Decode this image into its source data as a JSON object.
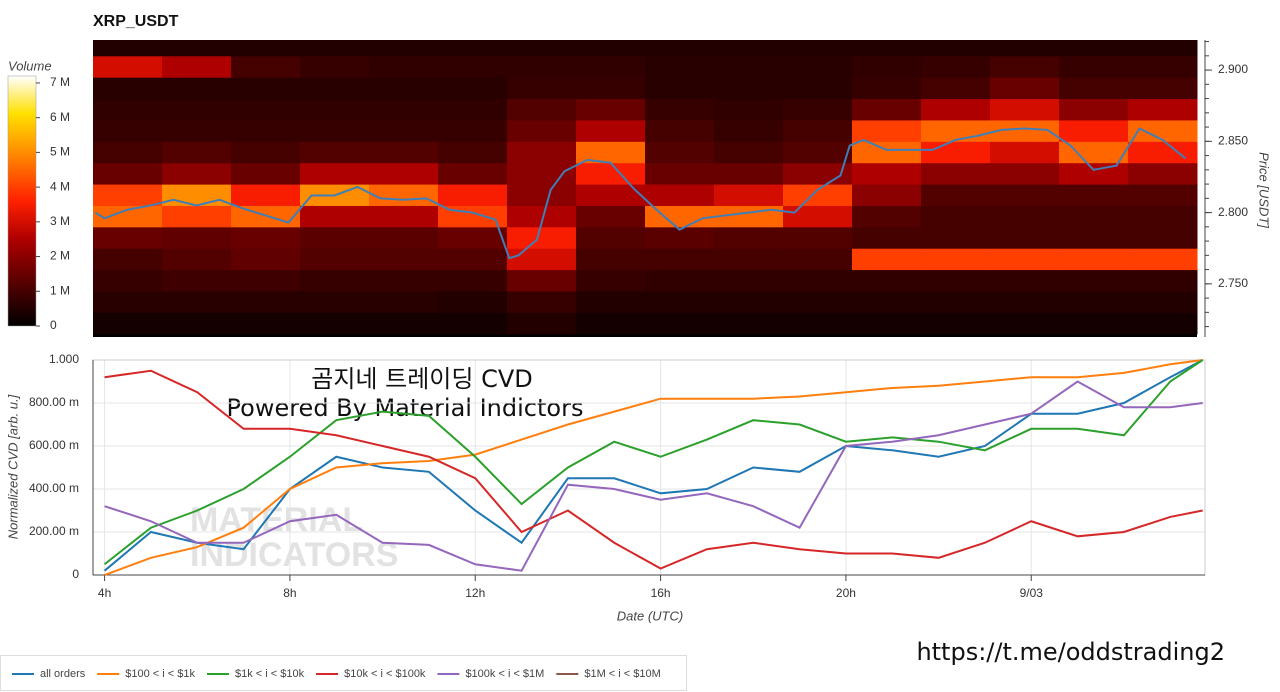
{
  "chart_data": [
    {
      "type": "heatmap",
      "title": "XRP_USDT",
      "y_label": "Price [USDT]",
      "colorbar_label": "Volume",
      "xlim": [
        3.75,
        27.75
      ],
      "x_edges": [
        3.75,
        5.25,
        6.75,
        8.25,
        9.75,
        11.25,
        12.75,
        14.25,
        15.75,
        17.25,
        18.75,
        20.25,
        21.75,
        23.25,
        24.75,
        26.25,
        27.75
      ],
      "y_edges": [
        2.715,
        2.73,
        2.745,
        2.76,
        2.775,
        2.79,
        2.805,
        2.82,
        2.835,
        2.85,
        2.865,
        2.88,
        2.895,
        2.91,
        2.925
      ],
      "z": [
        [
          0.3,
          0.3,
          0.3,
          0.3,
          0.3,
          0.3,
          0.5,
          0.3,
          0.3,
          0.3,
          0.3,
          0.3,
          0.3,
          0.3,
          0.3,
          0.3
        ],
        [
          0.6,
          0.6,
          0.6,
          0.6,
          0.6,
          0.5,
          0.8,
          0.5,
          0.5,
          0.5,
          0.5,
          0.5,
          0.5,
          0.5,
          0.5,
          0.5
        ],
        [
          0.8,
          0.9,
          0.9,
          0.8,
          0.8,
          0.8,
          1.5,
          0.8,
          0.7,
          0.7,
          0.7,
          0.7,
          0.7,
          0.7,
          0.7,
          0.7
        ],
        [
          1.0,
          1.2,
          1.4,
          1.2,
          1.2,
          1.2,
          3.0,
          1.0,
          1.0,
          1.0,
          1.0,
          4.0,
          4.0,
          4.0,
          4.0,
          4.0
        ],
        [
          1.5,
          1.4,
          1.5,
          1.3,
          1.3,
          1.5,
          3.5,
          1.2,
          1.3,
          1.2,
          1.2,
          1.0,
          1.0,
          1.0,
          1.0,
          1.0
        ],
        [
          4.5,
          4.0,
          4.5,
          2.5,
          2.5,
          4.0,
          2.5,
          1.5,
          4.5,
          4.5,
          3.0,
          1.2,
          1.0,
          1.0,
          1.0,
          1.0
        ],
        [
          4.0,
          5.0,
          3.5,
          5.0,
          4.5,
          3.5,
          2.0,
          2.5,
          2.5,
          3.0,
          4.0,
          2.0,
          1.2,
          1.2,
          1.2,
          1.2
        ],
        [
          1.5,
          2.0,
          1.5,
          2.5,
          2.5,
          1.5,
          2.0,
          3.5,
          1.5,
          1.5,
          2.0,
          2.5,
          2.0,
          2.0,
          2.5,
          2.0
        ],
        [
          1.0,
          1.2,
          1.0,
          1.2,
          1.2,
          1.0,
          2.0,
          4.5,
          1.2,
          1.0,
          1.2,
          4.5,
          3.5,
          3.0,
          4.5,
          3.5
        ],
        [
          0.8,
          0.8,
          0.8,
          0.8,
          0.8,
          0.8,
          1.5,
          2.5,
          1.0,
          0.8,
          1.0,
          4.0,
          4.5,
          4.5,
          3.5,
          4.5
        ],
        [
          0.7,
          0.7,
          0.7,
          0.7,
          0.7,
          0.7,
          1.2,
          1.5,
          0.8,
          0.7,
          0.8,
          1.5,
          2.5,
          3.0,
          2.0,
          2.5
        ],
        [
          0.6,
          0.6,
          0.6,
          0.6,
          0.6,
          0.6,
          0.8,
          0.8,
          0.6,
          0.6,
          0.6,
          0.8,
          1.0,
          1.5,
          1.0,
          1.0
        ],
        [
          3.0,
          2.5,
          1.0,
          0.8,
          0.7,
          0.7,
          0.7,
          0.7,
          0.6,
          0.6,
          0.6,
          0.7,
          0.8,
          1.0,
          0.8,
          0.8
        ],
        [
          0.5,
          0.5,
          0.5,
          0.5,
          0.5,
          0.5,
          0.5,
          0.5,
          0.5,
          0.5,
          0.5,
          0.5,
          0.5,
          0.5,
          0.5,
          0.5
        ]
      ],
      "zlim": [
        0,
        7.2
      ],
      "zticks": [
        0,
        {
          "value": 1,
          "label": "1 M"
        },
        {
          "value": 2,
          "label": "2 M"
        },
        {
          "value": 3,
          "label": "3 M"
        },
        {
          "value": 4,
          "label": "4 M"
        },
        {
          "value": 5,
          "label": "5 M"
        },
        {
          "value": 6,
          "label": "6 M"
        },
        {
          "value": 7,
          "label": "7 M"
        }
      ],
      "ylim": [
        2.7127,
        2.9211
      ],
      "yticks": [
        {
          "value": 2.75,
          "label": "2.750"
        },
        {
          "value": 2.8,
          "label": "2.800"
        },
        {
          "value": 2.85,
          "label": "2.850"
        },
        {
          "value": 2.9,
          "label": "2.900"
        }
      ],
      "price": {
        "color": "#3f7fb8",
        "x": [
          3.8,
          4.0,
          4.5,
          5.0,
          5.5,
          6.0,
          6.5,
          7.0,
          7.5,
          8.0,
          8.5,
          9.0,
          9.5,
          10.0,
          10.5,
          11.0,
          11.5,
          12.0,
          12.5,
          12.8,
          13.0,
          13.4,
          13.7,
          14.0,
          14.5,
          15.0,
          15.5,
          16.0,
          16.5,
          17.0,
          17.5,
          18.0,
          18.5,
          19.0,
          19.5,
          20.0,
          20.2,
          20.5,
          21.0,
          21.5,
          22.0,
          22.5,
          23.0,
          23.5,
          24.0,
          24.5,
          25.0,
          25.5,
          26.0,
          26.5,
          27.0,
          27.5
        ],
        "values": [
          2.8,
          2.796,
          2.802,
          2.805,
          2.809,
          2.805,
          2.809,
          2.803,
          2.798,
          2.793,
          2.812,
          2.812,
          2.818,
          2.81,
          2.809,
          2.81,
          2.802,
          2.8,
          2.795,
          2.768,
          2.77,
          2.781,
          2.816,
          2.829,
          2.837,
          2.835,
          2.817,
          2.802,
          2.788,
          2.796,
          2.798,
          2.8,
          2.802,
          2.8,
          2.816,
          2.826,
          2.847,
          2.851,
          2.844,
          2.844,
          2.844,
          2.851,
          2.854,
          2.858,
          2.859,
          2.858,
          2.847,
          2.83,
          2.833,
          2.859,
          2.851,
          2.838
        ]
      }
    },
    {
      "type": "line",
      "x_label": "Date (UTC)",
      "y_label": "Normalized CVD [arb. u.]",
      "annotations": [
        "곰지네 트레이딩 CVD",
        "Powered By Material Indictors"
      ],
      "watermark": [
        "MATERIAL",
        "INDICATORS"
      ],
      "xlim": [
        3.75,
        27.75
      ],
      "xticks": [
        {
          "value": 4,
          "label": "4h"
        },
        {
          "value": 8,
          "label": "8h"
        },
        {
          "value": 12,
          "label": "12h"
        },
        {
          "value": 16,
          "label": "16h"
        },
        {
          "value": 20,
          "label": "20h"
        },
        {
          "value": 24,
          "label": "9/03"
        }
      ],
      "ylim": [
        0,
        1
      ],
      "yticks": [
        0,
        {
          "value": 0.2,
          "label": "200.00 m"
        },
        {
          "value": 0.4,
          "label": "400.00 m"
        },
        {
          "value": 0.6,
          "label": "600.00 m"
        },
        {
          "value": 0.8,
          "label": "800.00 m"
        },
        {
          "value": 1,
          "label": "1.000"
        }
      ],
      "grid": true,
      "x": [
        4,
        5,
        6,
        7,
        8,
        9,
        10,
        11,
        12,
        13,
        14,
        15,
        16,
        17,
        18,
        19,
        20,
        21,
        22,
        23,
        24,
        25,
        26,
        27,
        27.7
      ],
      "series": [
        {
          "name": "all orders",
          "color": "#1f77b4",
          "values": [
            0.02,
            0.2,
            0.15,
            0.12,
            0.4,
            0.55,
            0.5,
            0.48,
            0.3,
            0.15,
            0.45,
            0.45,
            0.38,
            0.4,
            0.5,
            0.48,
            0.6,
            0.58,
            0.55,
            0.6,
            0.75,
            0.75,
            0.8,
            0.92,
            1.0
          ]
        },
        {
          "name": "$100 < i < $1k",
          "color": "#ff7f0e",
          "values": [
            0.0,
            0.08,
            0.13,
            0.22,
            0.4,
            0.5,
            0.52,
            0.53,
            0.56,
            0.63,
            0.7,
            0.76,
            0.82,
            0.82,
            0.82,
            0.83,
            0.85,
            0.87,
            0.88,
            0.9,
            0.92,
            0.92,
            0.94,
            0.98,
            1.0
          ]
        },
        {
          "name": "$1k < i < $10k",
          "color": "#2ca02c",
          "values": [
            0.05,
            0.22,
            0.3,
            0.4,
            0.55,
            0.72,
            0.76,
            0.74,
            0.55,
            0.33,
            0.5,
            0.62,
            0.55,
            0.63,
            0.72,
            0.7,
            0.62,
            0.64,
            0.62,
            0.58,
            0.68,
            0.68,
            0.65,
            0.9,
            1.0
          ]
        },
        {
          "name": "$10k < i < $100k",
          "color": "#d62728",
          "values": [
            0.92,
            0.95,
            0.85,
            0.68,
            0.68,
            0.65,
            0.6,
            0.55,
            0.45,
            0.2,
            0.3,
            0.15,
            0.03,
            0.12,
            0.15,
            0.12,
            0.1,
            0.1,
            0.08,
            0.15,
            0.25,
            0.18,
            0.2,
            0.27,
            0.3
          ]
        },
        {
          "name": "$100k < i < $1M",
          "color": "#9467bd",
          "values": [
            0.32,
            0.25,
            0.15,
            0.15,
            0.25,
            0.28,
            0.15,
            0.14,
            0.05,
            0.02,
            0.42,
            0.4,
            0.35,
            0.38,
            0.32,
            0.22,
            0.6,
            0.62,
            0.65,
            0.7,
            0.75,
            0.9,
            0.78,
            0.78,
            0.8
          ]
        },
        {
          "name": "$1M < i < $10M",
          "color": "#8c564b",
          "values": [
            null,
            null,
            null,
            null,
            null,
            null,
            null,
            null,
            null,
            null,
            null,
            null,
            null,
            null,
            null,
            null,
            null,
            null,
            null,
            null,
            null,
            null,
            null,
            null,
            null
          ]
        }
      ]
    }
  ],
  "footer": {
    "url": "https://t.me/oddstrading2"
  }
}
